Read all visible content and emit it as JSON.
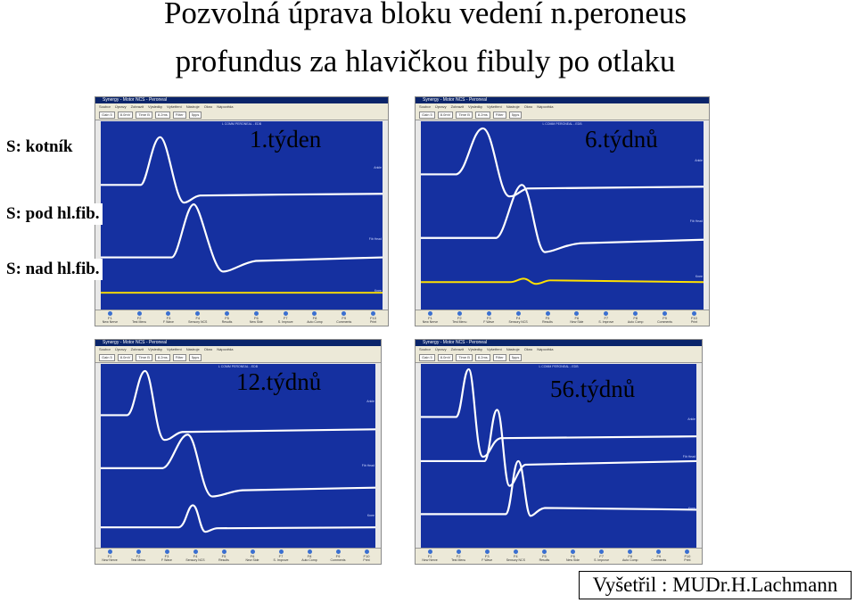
{
  "title": {
    "line1": "Pozvolná úprava bloku vedení n.peroneus",
    "line2": "profundus za hlavičkou fibuly po otlaku"
  },
  "row_labels": [
    "S: kotník",
    "S: pod hl.fib.",
    "S: nad hl.fib."
  ],
  "examiner": "Vyšetřil : MUDr.H.Lachmann",
  "software": {
    "window_title": "Synergy - Motor NCS - Peroneal",
    "menu": [
      "Soubor",
      "Úpravy",
      "Zobrazit",
      "Výsledky",
      "Vyšetření",
      "Nástroje",
      "Okno",
      "Nápověda"
    ],
    "toolbar": [
      "Gain 5",
      "8.0mV",
      "Time B",
      "8.2ms",
      "Filter",
      "5pps"
    ],
    "plot_header": "L COMM PERONEAL - EDB",
    "function_keys": [
      {
        "key": "F1",
        "label": "New Nerve"
      },
      {
        "key": "F2",
        "label": "Test Menu"
      },
      {
        "key": "F3",
        "label": "F Wave"
      },
      {
        "key": "F4",
        "label": "Sensory NCS"
      },
      {
        "key": "F5",
        "label": "Results"
      },
      {
        "key": "F6",
        "label": "New Side"
      },
      {
        "key": "F7",
        "label": "S. Improve"
      },
      {
        "key": "F8",
        "label": "Auto Comp"
      },
      {
        "key": "F9",
        "label": "Comments"
      },
      {
        "key": "F10",
        "label": "Print"
      }
    ],
    "trace_labels": [
      {
        "name": "Ankle",
        "unit": "5mV"
      },
      {
        "name": "Fib Head",
        "unit": "5mV"
      },
      {
        "name": "Knee",
        "unit": "5mV"
      }
    ]
  },
  "panels": [
    {
      "id": "w1",
      "week_label": "1.týden"
    },
    {
      "id": "w6",
      "week_label": "6.týdnů"
    },
    {
      "id": "w12",
      "week_label": "12.týdnů"
    },
    {
      "id": "w56",
      "week_label": "56.týdnů"
    }
  ],
  "colors": {
    "plot_bg": "#1530a0",
    "trace_white": "#ffffff",
    "trace_yellow": "#ffe000",
    "titlebar": "#0a246a"
  }
}
